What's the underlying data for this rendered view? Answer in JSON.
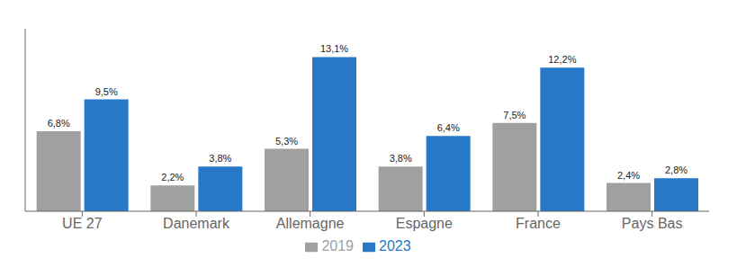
{
  "chart_data": {
    "type": "bar",
    "categories": [
      "UE 27",
      "Danemark",
      "Allemagne",
      "Espagne",
      "France",
      "Pays Bas"
    ],
    "series": [
      {
        "name": "2019",
        "color": "#a0a0a0",
        "values": [
          6.8,
          2.2,
          5.3,
          3.8,
          7.5,
          2.4
        ],
        "value_labels": [
          "6,8%",
          "2,2%",
          "5,3%",
          "3,8%",
          "7,5%",
          "2,4%"
        ]
      },
      {
        "name": "2023",
        "color": "#2878c8",
        "values": [
          9.5,
          3.8,
          13.1,
          6.4,
          12.2,
          2.8
        ],
        "value_labels": [
          "9,5%",
          "3,8%",
          "13,1%",
          "6,4%",
          "12,2%",
          "2,8%"
        ]
      }
    ],
    "ylim": [
      0,
      15.5
    ],
    "grid": false,
    "legend": "bottom",
    "data_labels": true,
    "tick_labels": "x"
  }
}
